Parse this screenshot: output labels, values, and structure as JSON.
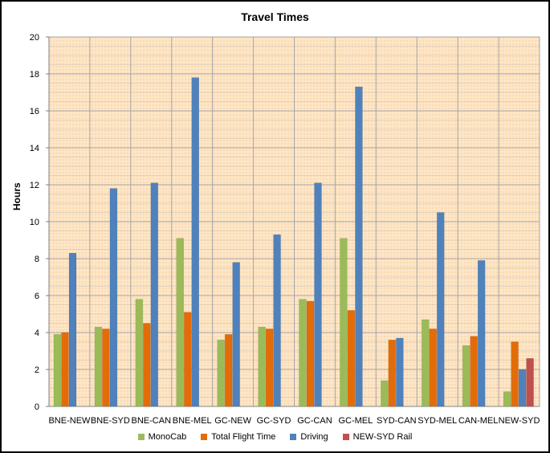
{
  "chart_data": {
    "type": "bar",
    "title": "Travel Times",
    "xlabel": "",
    "ylabel": "Hours",
    "ylim": [
      0,
      20
    ],
    "y_ticks": [
      0,
      2,
      4,
      6,
      8,
      10,
      12,
      14,
      16,
      18,
      20
    ],
    "grid": true,
    "legend_position": "bottom",
    "categories": [
      "BNE-NEW",
      "BNE-SYD",
      "BNE-CAN",
      "BNE-MEL",
      "GC-NEW",
      "GC-SYD",
      "GC-CAN",
      "GC-MEL",
      "SYD-CAN",
      "SYD-MEL",
      "CAN-MEL",
      "NEW-SYD"
    ],
    "series": [
      {
        "name": "MonoCab",
        "color": "#9bbb59",
        "values": [
          3.9,
          4.3,
          5.8,
          9.1,
          3.6,
          4.3,
          5.8,
          9.1,
          1.4,
          4.7,
          3.3,
          0.8
        ]
      },
      {
        "name": "Total Flight Time",
        "color": "#e36c09",
        "values": [
          4.0,
          4.2,
          4.5,
          5.1,
          3.9,
          4.2,
          5.7,
          5.2,
          3.6,
          4.2,
          3.8,
          3.5
        ]
      },
      {
        "name": "Driving",
        "color": "#4f81bd",
        "values": [
          8.3,
          11.8,
          12.1,
          17.8,
          7.8,
          9.3,
          12.1,
          17.3,
          3.7,
          10.5,
          7.9,
          2.0
        ]
      },
      {
        "name": "NEW-SYD Rail",
        "color": "#c0504d",
        "values": [
          null,
          null,
          null,
          null,
          null,
          null,
          null,
          null,
          null,
          null,
          null,
          2.6
        ]
      }
    ]
  }
}
